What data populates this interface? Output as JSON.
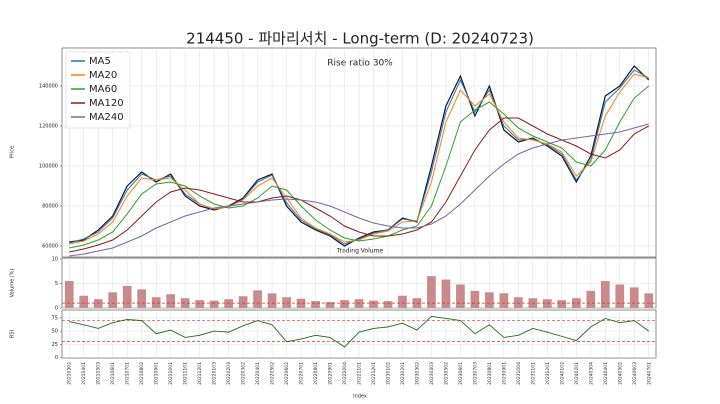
{
  "chart_data": {
    "type": "stock",
    "title": "214450 - 파마리서치 - Long-term (D: 20240723)",
    "annotation": "Rise ratio 30%",
    "annotation2": "Trading Volume",
    "xlabel": "Index",
    "ylabel": "Price",
    "grid": true,
    "legend": "upper left",
    "categories": [
      "20210302",
      "20210401",
      "20210503",
      "20210601",
      "20210701",
      "20210802",
      "20210901",
      "20211001",
      "20211101",
      "20211201",
      "20220103",
      "20220203",
      "20220302",
      "20220401",
      "20220502",
      "20220602",
      "20220701",
      "20220801",
      "20220901",
      "20221004",
      "20221101",
      "20221201",
      "20230102",
      "20230201",
      "20230302",
      "20230403",
      "20230502",
      "20230601",
      "20230703",
      "20230801",
      "20230901",
      "20231004",
      "20231101",
      "20231201",
      "20240102",
      "20240201",
      "20240304",
      "20240401",
      "20240502",
      "20240603",
      "20240701"
    ],
    "price": {
      "color": "#111133",
      "values": [
        62000,
        63000,
        68000,
        75000,
        90000,
        97000,
        92000,
        96000,
        85000,
        80000,
        78000,
        80000,
        84000,
        93000,
        96000,
        80000,
        72000,
        68000,
        65000,
        60000,
        64000,
        67000,
        68000,
        74000,
        72000,
        100000,
        130000,
        145000,
        125000,
        140000,
        118000,
        112000,
        114000,
        110000,
        105000,
        92000,
        105000,
        135000,
        140000,
        150000,
        143000
      ]
    },
    "series": [
      {
        "name": "MA5",
        "color": "#1f77b4",
        "values": [
          61500,
          63500,
          67000,
          74000,
          88000,
          96000,
          93000,
          95000,
          86000,
          81000,
          78500,
          79500,
          83500,
          92000,
          95500,
          81500,
          73000,
          68500,
          65500,
          61000,
          63500,
          66500,
          68000,
          73500,
          72500,
          97000,
          127000,
          143000,
          127000,
          138000,
          120000,
          113000,
          113500,
          110500,
          106000,
          93000,
          103000,
          132000,
          139000,
          148000,
          144000
        ]
      },
      {
        "name": "MA20",
        "color": "#ff7f0e",
        "values": [
          61000,
          62500,
          66000,
          72000,
          85000,
          94000,
          93000,
          94000,
          88000,
          81000,
          78500,
          79500,
          83000,
          90000,
          94000,
          84000,
          74000,
          69000,
          66000,
          62000,
          63000,
          66000,
          67500,
          72000,
          72500,
          92000,
          122000,
          138000,
          130000,
          136000,
          122000,
          114000,
          113000,
          111000,
          107000,
          95000,
          102000,
          125000,
          137000,
          146000,
          144000
        ]
      },
      {
        "name": "MA60",
        "color": "#2ca02c",
        "values": [
          59000,
          60500,
          63000,
          67000,
          76000,
          86000,
          91000,
          92000,
          90000,
          85000,
          81000,
          79000,
          80000,
          84000,
          90000,
          88000,
          80000,
          73000,
          68000,
          64000,
          62500,
          63500,
          65000,
          68000,
          70000,
          80000,
          100000,
          122000,
          128000,
          132000,
          126000,
          119000,
          115000,
          112000,
          109000,
          102000,
          100000,
          108000,
          122000,
          134000,
          140000
        ]
      },
      {
        "name": "MA120",
        "color": "#8b1a1a",
        "values": [
          57000,
          58500,
          60500,
          63000,
          68000,
          75000,
          82000,
          87000,
          89000,
          88000,
          86000,
          84000,
          82000,
          82000,
          84000,
          85000,
          83000,
          79000,
          75000,
          70000,
          67000,
          65000,
          65000,
          66000,
          68000,
          72000,
          82000,
          95000,
          108000,
          118000,
          124000,
          124000,
          120000,
          116000,
          113000,
          110000,
          106000,
          104000,
          108000,
          116000,
          120000
        ]
      },
      {
        "name": "MA240",
        "color": "#7b62b0",
        "values": [
          55000,
          56000,
          57500,
          59000,
          62000,
          65000,
          69000,
          72000,
          75000,
          77000,
          79000,
          80000,
          81000,
          82000,
          83000,
          83500,
          83000,
          82000,
          80000,
          77000,
          74000,
          71500,
          70000,
          69000,
          69000,
          71000,
          75000,
          81000,
          88000,
          95000,
          101000,
          106000,
          109000,
          111000,
          113000,
          114000,
          115000,
          116000,
          117000,
          119000,
          121000
        ]
      }
    ],
    "ylim": [
      54500,
      159000
    ],
    "yticks": [
      60000,
      80000,
      100000,
      120000,
      140000
    ],
    "volume": {
      "ylabel": "Volume (%)",
      "color": "#c98a8a",
      "ylim": [
        0,
        10.2
      ],
      "yticks": [
        0,
        5,
        10
      ],
      "hline": 1,
      "values": [
        5.5,
        2.5,
        1.8,
        3.2,
        4.5,
        3.8,
        2.2,
        2.8,
        2.0,
        1.6,
        1.5,
        1.8,
        2.4,
        3.6,
        3.0,
        2.2,
        1.9,
        1.4,
        1.2,
        1.6,
        1.8,
        1.5,
        1.4,
        2.5,
        2.0,
        6.5,
        5.8,
        4.8,
        3.5,
        3.2,
        3.0,
        2.2,
        2.0,
        1.8,
        1.6,
        2.0,
        3.5,
        5.5,
        4.8,
        4.2,
        3.0
      ]
    },
    "rsi": {
      "ylabel": "RSI",
      "color": "#1a6b1a",
      "ylim": [
        -1,
        90
      ],
      "yticks": [
        0,
        25,
        50,
        75
      ],
      "hlines": [
        70,
        30
      ],
      "values": [
        68,
        62,
        55,
        66,
        72,
        70,
        45,
        52,
        38,
        42,
        50,
        48,
        60,
        70,
        62,
        30,
        35,
        42,
        38,
        20,
        48,
        55,
        58,
        65,
        52,
        78,
        74,
        70,
        45,
        62,
        38,
        42,
        55,
        48,
        40,
        32,
        58,
        74,
        66,
        70,
        50
      ]
    }
  }
}
